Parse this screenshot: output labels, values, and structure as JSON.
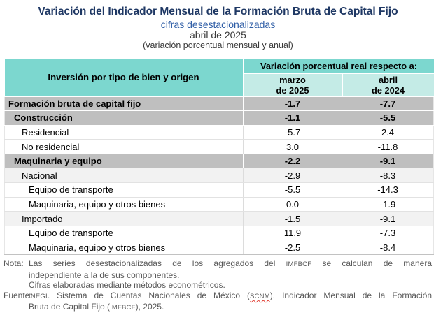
{
  "header": {
    "title": "Variación del Indicador Mensual de la Formación Bruta de Capital Fijo",
    "subtitle": "cifras desestacionalizadas",
    "period": "abril de 2025",
    "unit_note": "(variación porcentual mensual y anual)"
  },
  "colors": {
    "title_navy": "#1F3864",
    "subtitle_blue": "#2E5DA6",
    "header_teal": "#7CD7CF",
    "subheader_teal": "#C4EBE6",
    "section_row_gray": "#BFBFBF",
    "light_row_gray": "#F2F2F2",
    "note_gray": "#595959",
    "spellcheck_red": "#E03C31"
  },
  "table": {
    "category_header": "Inversión por tipo de bien y origen",
    "span_header": "Variación porcentual real respecto a:",
    "columns": [
      {
        "line1": "marzo",
        "line2": "de 2025"
      },
      {
        "line1": "abril",
        "line2": "de 2024"
      }
    ],
    "rows": [
      {
        "label": "Formación bruta de capital fijo",
        "indent": 0,
        "style": "section",
        "marzo": "-1.7",
        "abril": "-7.7"
      },
      {
        "label": "Construcción",
        "indent": 1,
        "style": "section",
        "marzo": "-1.1",
        "abril": "-5.5"
      },
      {
        "label": "Residencial",
        "indent": 2,
        "style": "plain",
        "marzo": "-5.7",
        "abril": "2.4"
      },
      {
        "label": "No residencial",
        "indent": 2,
        "style": "plain",
        "marzo": "3.0",
        "abril": "-11.8"
      },
      {
        "label": "Maquinaria y equipo",
        "indent": 1,
        "style": "section",
        "marzo": "-2.2",
        "abril": "-9.1"
      },
      {
        "label": "Nacional",
        "indent": 2,
        "style": "light",
        "marzo": "-2.9",
        "abril": "-8.3"
      },
      {
        "label": "Equipo de transporte",
        "indent": 3,
        "style": "plain",
        "marzo": "-5.5",
        "abril": "-14.3"
      },
      {
        "label": "Maquinaria, equipo y otros bienes",
        "indent": 3,
        "style": "plain",
        "marzo": "0.0",
        "abril": "-1.9"
      },
      {
        "label": "Importado",
        "indent": 2,
        "style": "light",
        "marzo": "-1.5",
        "abril": "-9.1"
      },
      {
        "label": "Equipo de transporte",
        "indent": 3,
        "style": "plain",
        "marzo": "11.9",
        "abril": "-7.3"
      },
      {
        "label": "Maquinaria, equipo y otros bienes",
        "indent": 3,
        "style": "plain",
        "marzo": "-2.5",
        "abril": "-8.4"
      }
    ]
  },
  "notes": {
    "nota_label": "Nota:",
    "nota_lines": [
      {
        "justify": true,
        "segments": [
          {
            "text": "Las series desestacionalizadas de los agregados del "
          },
          {
            "text": "IMFBCF",
            "small": true
          },
          {
            "text": " se calculan de manera"
          }
        ]
      },
      {
        "justify": false,
        "segments": [
          {
            "text": "independiente a la de sus componentes."
          }
        ]
      },
      {
        "justify": false,
        "segments": [
          {
            "text": "Cifras elaboradas mediante métodos econométricos."
          }
        ]
      }
    ],
    "fuente_label": "Fuente:",
    "fuente_lines": [
      {
        "justify": true,
        "segments": [
          {
            "text": "INEGI",
            "small": true
          },
          {
            "text": ". Sistema de Cuentas Nacionales de México ("
          },
          {
            "text": "SCNM",
            "small": true,
            "squiggle": true
          },
          {
            "text": "). Indicador Mensual de la Formación"
          }
        ]
      },
      {
        "justify": false,
        "segments": [
          {
            "text": "Bruta de Capital Fijo ("
          },
          {
            "text": "IMFBCF",
            "small": true
          },
          {
            "text": "), 2025."
          }
        ]
      }
    ]
  }
}
